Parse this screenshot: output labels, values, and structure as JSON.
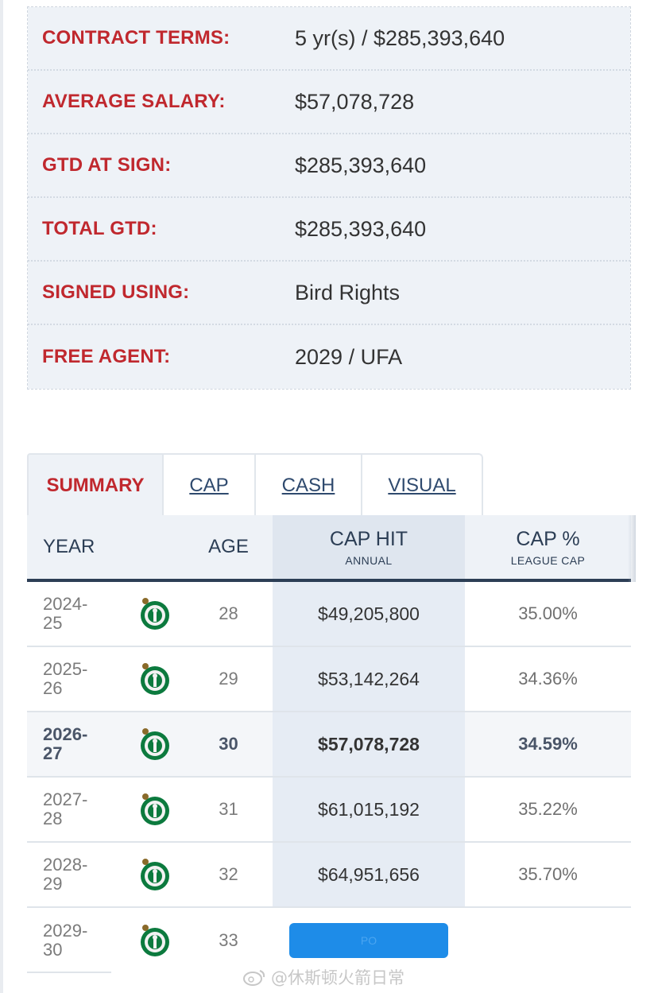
{
  "contract": {
    "rows": [
      {
        "label": "CONTRACT TERMS:",
        "value": "5 yr(s) / $285,393,640"
      },
      {
        "label": "AVERAGE SALARY:",
        "value": "$57,078,728"
      },
      {
        "label": "GTD AT SIGN:",
        "value": "$285,393,640"
      },
      {
        "label": "TOTAL GTD:",
        "value": "$285,393,640"
      },
      {
        "label": "SIGNED USING:",
        "value": "Bird Rights"
      },
      {
        "label": "FREE AGENT:",
        "value": "2029 / UFA"
      }
    ]
  },
  "tabs": [
    {
      "label": "SUMMARY",
      "active": true
    },
    {
      "label": "CAP",
      "active": false
    },
    {
      "label": "CASH",
      "active": false
    },
    {
      "label": "VISUAL",
      "active": false
    }
  ],
  "table": {
    "headers": {
      "year": "YEAR",
      "age": "AGE",
      "cap_hit": "CAP HIT",
      "cap_hit_sub": "ANNUAL",
      "cap_pct": "CAP %",
      "cap_pct_sub": "LEAGUE CAP"
    },
    "rows": [
      {
        "year_a": "2024-",
        "year_b": "25",
        "age": "28",
        "cap_hit": "$49,205,800",
        "cap_pct": "35.00%"
      },
      {
        "year_a": "2025-",
        "year_b": "26",
        "age": "29",
        "cap_hit": "$53,142,264",
        "cap_pct": "34.36%"
      },
      {
        "year_a": "2026-",
        "year_b": "27",
        "age": "30",
        "cap_hit": "$57,078,728",
        "cap_pct": "34.59%"
      },
      {
        "year_a": "2027-",
        "year_b": "28",
        "age": "31",
        "cap_hit": "$61,015,192",
        "cap_pct": "35.22%"
      },
      {
        "year_a": "2028-",
        "year_b": "29",
        "age": "32",
        "cap_hit": "$64,951,656",
        "cap_pct": "35.70%"
      },
      {
        "year_a": "2029-",
        "year_b": "30",
        "age": "33",
        "cap_hit": "",
        "cap_pct": ""
      }
    ],
    "last_row_button_label": "PO"
  },
  "logo_icon": "celtics-logo-icon",
  "watermark": "@休斯顿火箭日常",
  "colors": {
    "label_red": "#c0282e",
    "navy": "#2c3e55",
    "row_bg": "#eef2f7",
    "cap_col_bg": "#e6ecf4",
    "button_blue": "#1e8ce8"
  }
}
